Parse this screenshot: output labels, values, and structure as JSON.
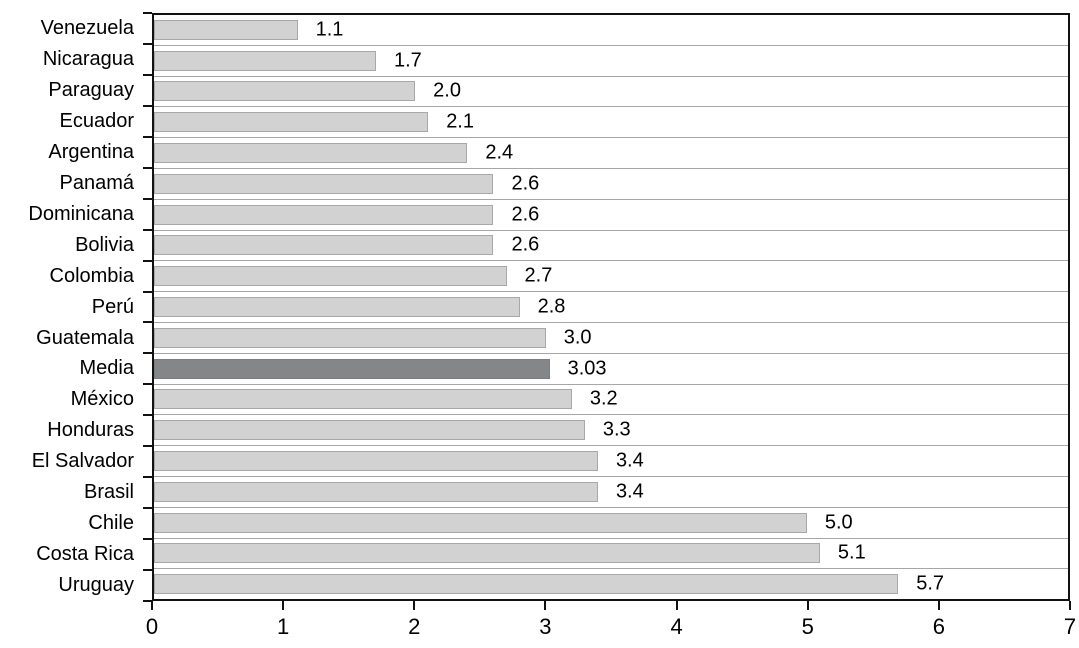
{
  "chart_data": {
    "type": "bar",
    "orientation": "horizontal",
    "title": "",
    "xlabel": "",
    "ylabel": "",
    "categories": [
      "Venezuela",
      "Nicaragua",
      "Paraguay",
      "Ecuador",
      "Argentina",
      "Panamá",
      "Dominicana",
      "Bolivia",
      "Colombia",
      "Perú",
      "Guatemala",
      "Media",
      "México",
      "Honduras",
      "El Salvador",
      "Brasil",
      "Chile",
      "Costa Rica",
      "Uruguay"
    ],
    "values": [
      1.1,
      1.7,
      2.0,
      2.1,
      2.4,
      2.6,
      2.6,
      2.6,
      2.7,
      2.8,
      3.0,
      3.03,
      3.2,
      3.3,
      3.4,
      3.4,
      5.0,
      5.1,
      5.7
    ],
    "value_labels": [
      "1.1",
      "1.7",
      "2.0",
      "2.1",
      "2.4",
      "2.6",
      "2.6",
      "2.6",
      "2.7",
      "2.8",
      "3.0",
      "3.03",
      "3.2",
      "3.3",
      "3.4",
      "3.4",
      "5.0",
      "5.1",
      "5.7"
    ],
    "highlight_category": "Media",
    "highlight_index": 11,
    "xlim": [
      0,
      7
    ],
    "x_ticks": [
      "0",
      "1",
      "2",
      "3",
      "4",
      "5",
      "6",
      "7"
    ],
    "grid": "row-separator horizontal lines",
    "legend": "none",
    "colors": {
      "bar_fill": "#d2d2d2",
      "bar_border": "#a8a8a8",
      "highlight_fill": "#848688",
      "gridline": "#a6a6a6",
      "axis": "#121212",
      "text": "#000000",
      "background": "#ffffff"
    }
  }
}
